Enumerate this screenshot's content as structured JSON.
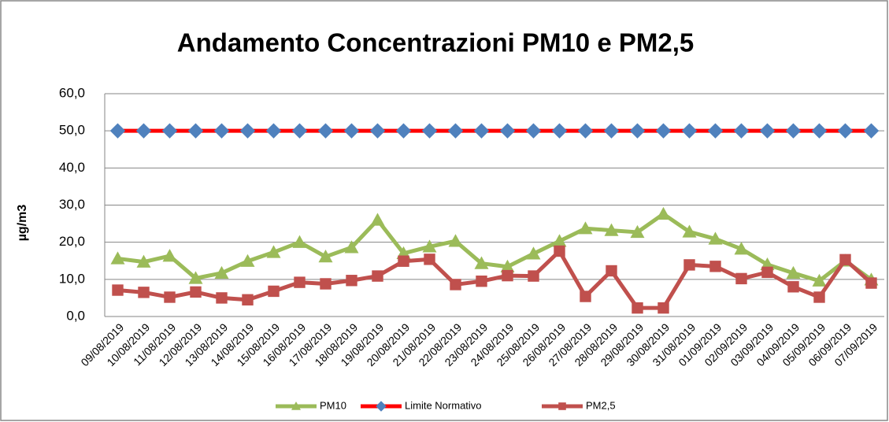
{
  "chart_data": {
    "type": "line",
    "title": "Andamento Concentrazioni PM10 e PM2,5",
    "y_label": "µg/m3",
    "categories": [
      "09/08/2019",
      "10/08/2019",
      "11/08/2019",
      "12/08/2019",
      "13/08/2019",
      "14/08/2019",
      "15/08/2019",
      "16/08/2019",
      "17/08/2019",
      "18/08/2019",
      "19/08/2019",
      "20/08/2019",
      "21/08/2019",
      "22/08/2019",
      "23/08/2019",
      "24/08/2019",
      "25/08/2019",
      "26/08/2019",
      "27/08/2019",
      "28/08/2019",
      "29/08/2019",
      "30/08/2019",
      "31/08/2019",
      "01/09/2019",
      "02/09/2019",
      "03/09/2019",
      "04/09/2019",
      "05/09/2019",
      "06/09/2019",
      "07/09/2019"
    ],
    "series": [
      {
        "name": "PM10",
        "color": "#9bbb59",
        "marker_color": "#9bbb59",
        "marker": "triangle",
        "values": [
          15.6,
          14.7,
          16.3,
          10.3,
          11.7,
          14.9,
          17.3,
          20.0,
          16.1,
          18.6,
          26.0,
          17.0,
          18.8,
          20.3,
          14.3,
          13.4,
          16.9,
          20.3,
          23.7,
          23.2,
          22.7,
          27.6,
          22.8,
          20.9,
          18.2,
          14.0,
          11.7,
          9.6,
          15.0,
          9.9
        ]
      },
      {
        "name": "Limite Normativo",
        "color": "#ff0000",
        "marker_color": "#4f81bd",
        "marker": "diamond",
        "values": [
          50,
          50,
          50,
          50,
          50,
          50,
          50,
          50,
          50,
          50,
          50,
          50,
          50,
          50,
          50,
          50,
          50,
          50,
          50,
          50,
          50,
          50,
          50,
          50,
          50,
          50,
          50,
          50,
          50,
          50
        ]
      },
      {
        "name": "PM2,5",
        "color": "#c0504d",
        "marker_color": "#c0504d",
        "marker": "square",
        "values": [
          7.1,
          6.5,
          5.2,
          6.6,
          5.0,
          4.5,
          6.8,
          9.2,
          8.8,
          9.7,
          10.9,
          14.9,
          15.4,
          8.6,
          9.5,
          11.0,
          10.9,
          17.6,
          5.4,
          12.3,
          2.3,
          2.3,
          13.9,
          13.5,
          10.2,
          11.9,
          8.0,
          5.2,
          15.3,
          9.0
        ]
      }
    ],
    "ylim": [
      0,
      60
    ],
    "yticks": [
      {
        "value": 0,
        "label": "0,0"
      },
      {
        "value": 10,
        "label": "10,0"
      },
      {
        "value": 20,
        "label": "20,0"
      },
      {
        "value": 30,
        "label": "30,0"
      },
      {
        "value": 40,
        "label": "40,0"
      },
      {
        "value": 50,
        "label": "50,0"
      },
      {
        "value": 60,
        "label": "60,0"
      }
    ],
    "grid": true,
    "legend": "bottom"
  }
}
